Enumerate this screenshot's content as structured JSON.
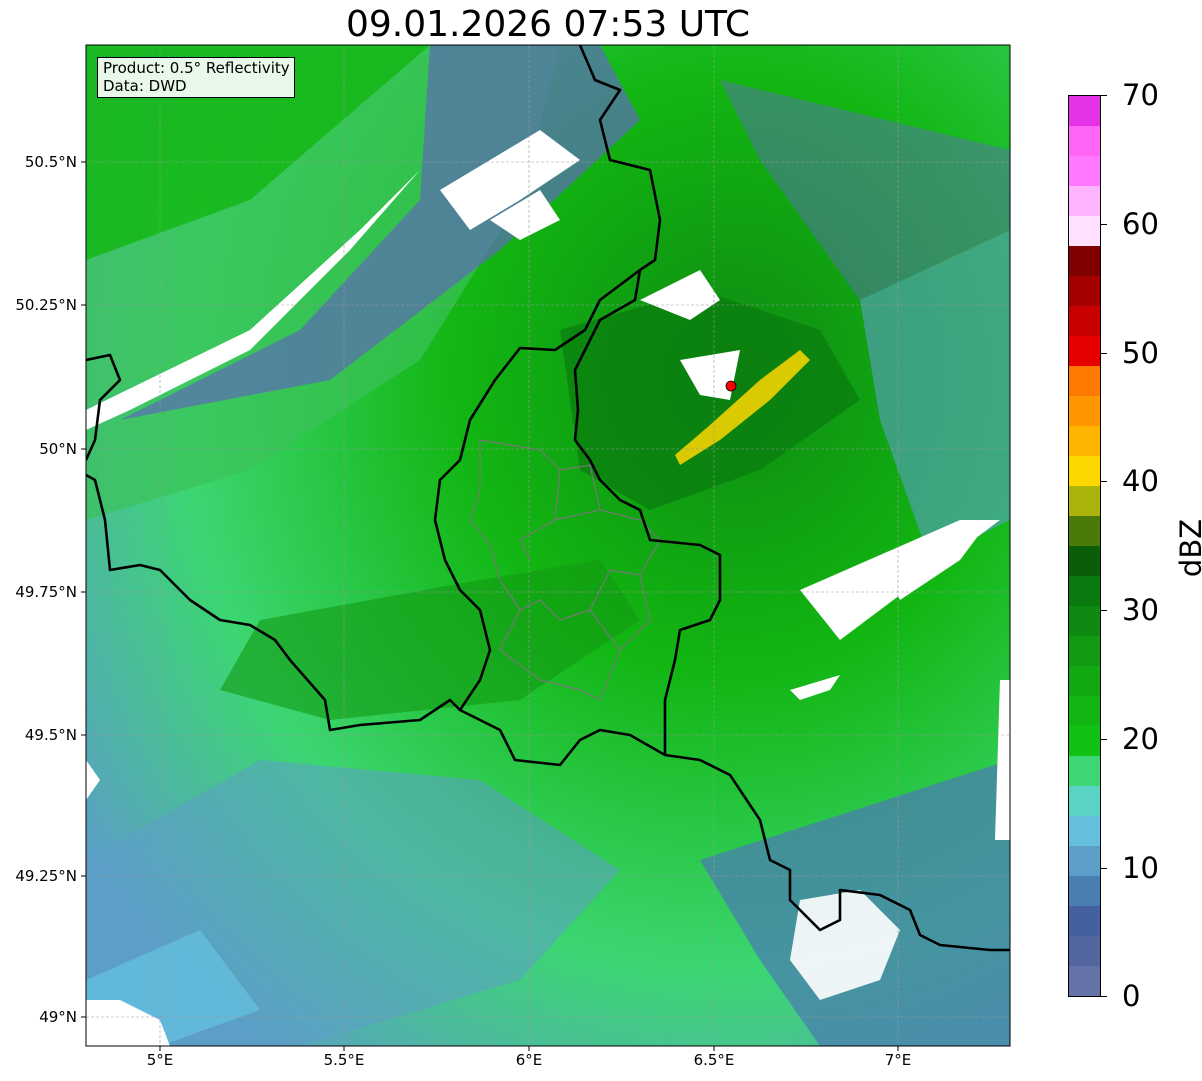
{
  "title": "09.01.2026 07:53 UTC",
  "info_box": {
    "line1": "Product: 0.5° Reflectivity",
    "line2": "Data: DWD"
  },
  "lat_labels": [
    "50.5°N",
    "50.25°N",
    "50°N",
    "49.75°N",
    "49.5°N",
    "49.25°N",
    "49°N"
  ],
  "lon_labels": [
    "5°E",
    "5.5°E",
    "6°E",
    "6.5°E",
    "7°E"
  ],
  "radar_site_color": "#ff0000",
  "colorbar": {
    "unit": "dBZ",
    "tick_labels": [
      "0",
      "10",
      "20",
      "30",
      "40",
      "50",
      "60",
      "70"
    ],
    "colors": [
      "#6472a8",
      "#5466a0",
      "#44609e",
      "#4a7db0",
      "#5c9ec8",
      "#64bedc",
      "#5ad2c4",
      "#3cd672",
      "#12c212",
      "#12b612",
      "#12a812",
      "#129a12",
      "#0e8a12",
      "#0a7a0e",
      "#0a5e0a",
      "#4a7a0a",
      "#aab40a",
      "#ffd700",
      "#ffb400",
      "#ff9600",
      "#ff7800",
      "#e60000",
      "#c80000",
      "#a50000",
      "#800000",
      "#ffe0ff",
      "#ffb4ff",
      "#ff78ff",
      "#ff64f5",
      "#e632e6"
    ]
  }
}
